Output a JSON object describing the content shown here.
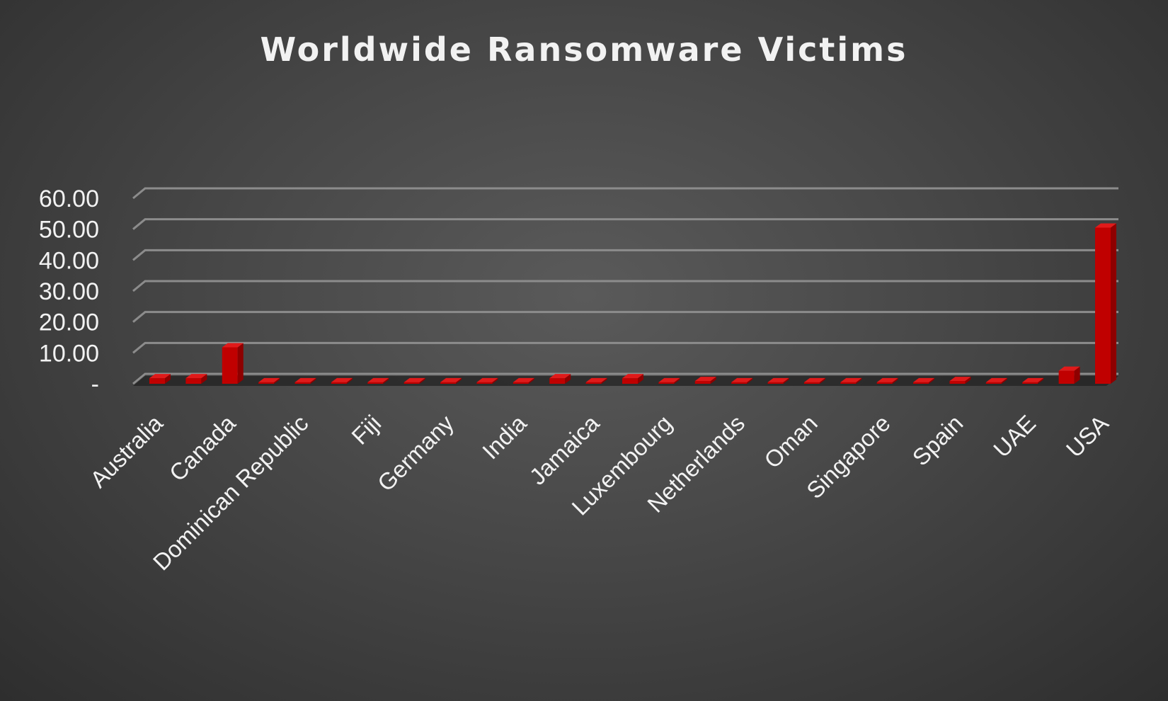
{
  "chart_data": {
    "type": "bar",
    "title": "Worldwide Ransomware Victims",
    "xlabel": "",
    "ylabel": "",
    "ylim": [
      0,
      60
    ],
    "yticks": [
      0,
      10,
      20,
      30,
      40,
      50,
      60
    ],
    "ytick_labels": [
      "-",
      "10.00",
      "20.00",
      "30.00",
      "40.00",
      "50.00",
      "60.00"
    ],
    "grid": true,
    "legend": "none",
    "bar_color": "#c00000",
    "categories": [
      "Australia",
      "",
      "Canada",
      "",
      "Dominican Republic",
      "",
      "Fiji",
      "",
      "Germany",
      "",
      "India",
      "",
      "Jamaica",
      "",
      "Luxembourg",
      "",
      "Netherlands",
      "",
      "Oman",
      "",
      "Singapore",
      "",
      "Spain",
      "",
      "UAE",
      "",
      "USA"
    ],
    "values": [
      1.8,
      1.8,
      11.8,
      0.5,
      0.5,
      0.5,
      0.5,
      0.5,
      0.5,
      0.5,
      0.5,
      1.8,
      0.5,
      1.8,
      0.5,
      0.9,
      0.5,
      0.5,
      0.5,
      0.5,
      0.5,
      0.5,
      0.9,
      0.5,
      0.5,
      4.2,
      50.5
    ]
  }
}
